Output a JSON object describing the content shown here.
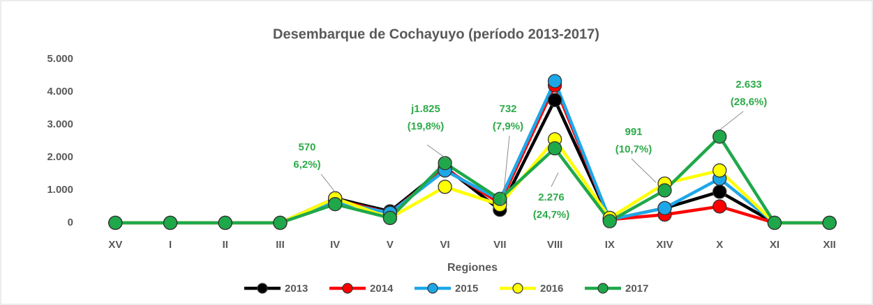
{
  "chart_data": {
    "type": "line",
    "title": "Desembarque de Cochayuyo (período 2013-2017)",
    "x_label": "Regiones",
    "categories": [
      "XV",
      "I",
      "II",
      "III",
      "IV",
      "V",
      "VI",
      "VII",
      "VIII",
      "IX",
      "XIV",
      "X",
      "XI",
      "XII"
    ],
    "series": [
      {
        "name": "2013",
        "color": "#000000",
        "values": [
          0,
          0,
          0,
          0,
          750,
          350,
          1700,
          400,
          3750,
          100,
          450,
          950,
          0,
          0
        ]
      },
      {
        "name": "2014",
        "color": "#ff0000",
        "values": [
          0,
          0,
          0,
          0,
          700,
          300,
          1650,
          600,
          4200,
          100,
          250,
          500,
          0,
          0
        ]
      },
      {
        "name": "2015",
        "color": "#1ea7e8",
        "values": [
          0,
          0,
          0,
          0,
          650,
          300,
          1600,
          700,
          4330,
          100,
          450,
          1350,
          0,
          0
        ]
      },
      {
        "name": "2016",
        "color": "#ffff00",
        "values": [
          0,
          0,
          0,
          0,
          750,
          150,
          1100,
          550,
          2550,
          150,
          1200,
          1600,
          0,
          0
        ]
      },
      {
        "name": "2017",
        "color": "#1fa84a",
        "values": [
          0,
          0,
          0,
          0,
          570,
          150,
          1825,
          732,
          2276,
          50,
          991,
          2633,
          0,
          0
        ]
      }
    ],
    "ylim": [
      0,
      5000
    ],
    "yticks": [
      0,
      {
        "value": 1000,
        "label": "1.000"
      },
      {
        "value": 2000,
        "label": "2.000"
      },
      {
        "value": 3000,
        "label": "3.000"
      },
      {
        "value": 4000,
        "label": "4.000"
      },
      {
        "value": 5000,
        "label": "5.000"
      }
    ],
    "grid": false,
    "legend": "bottom",
    "annotations": [
      {
        "lines": [
          "570",
          "6,2%)"
        ]
      },
      {
        "lines": [
          "j1.825",
          "(19,8%)"
        ]
      },
      {
        "lines": [
          "732",
          "(7,9%)"
        ]
      },
      {
        "lines": [
          "2.276",
          "(24,7%)"
        ]
      },
      {
        "lines": [
          "991",
          "(10,7%)"
        ]
      },
      {
        "lines": [
          "2.633",
          "(28,6%)"
        ]
      }
    ]
  }
}
